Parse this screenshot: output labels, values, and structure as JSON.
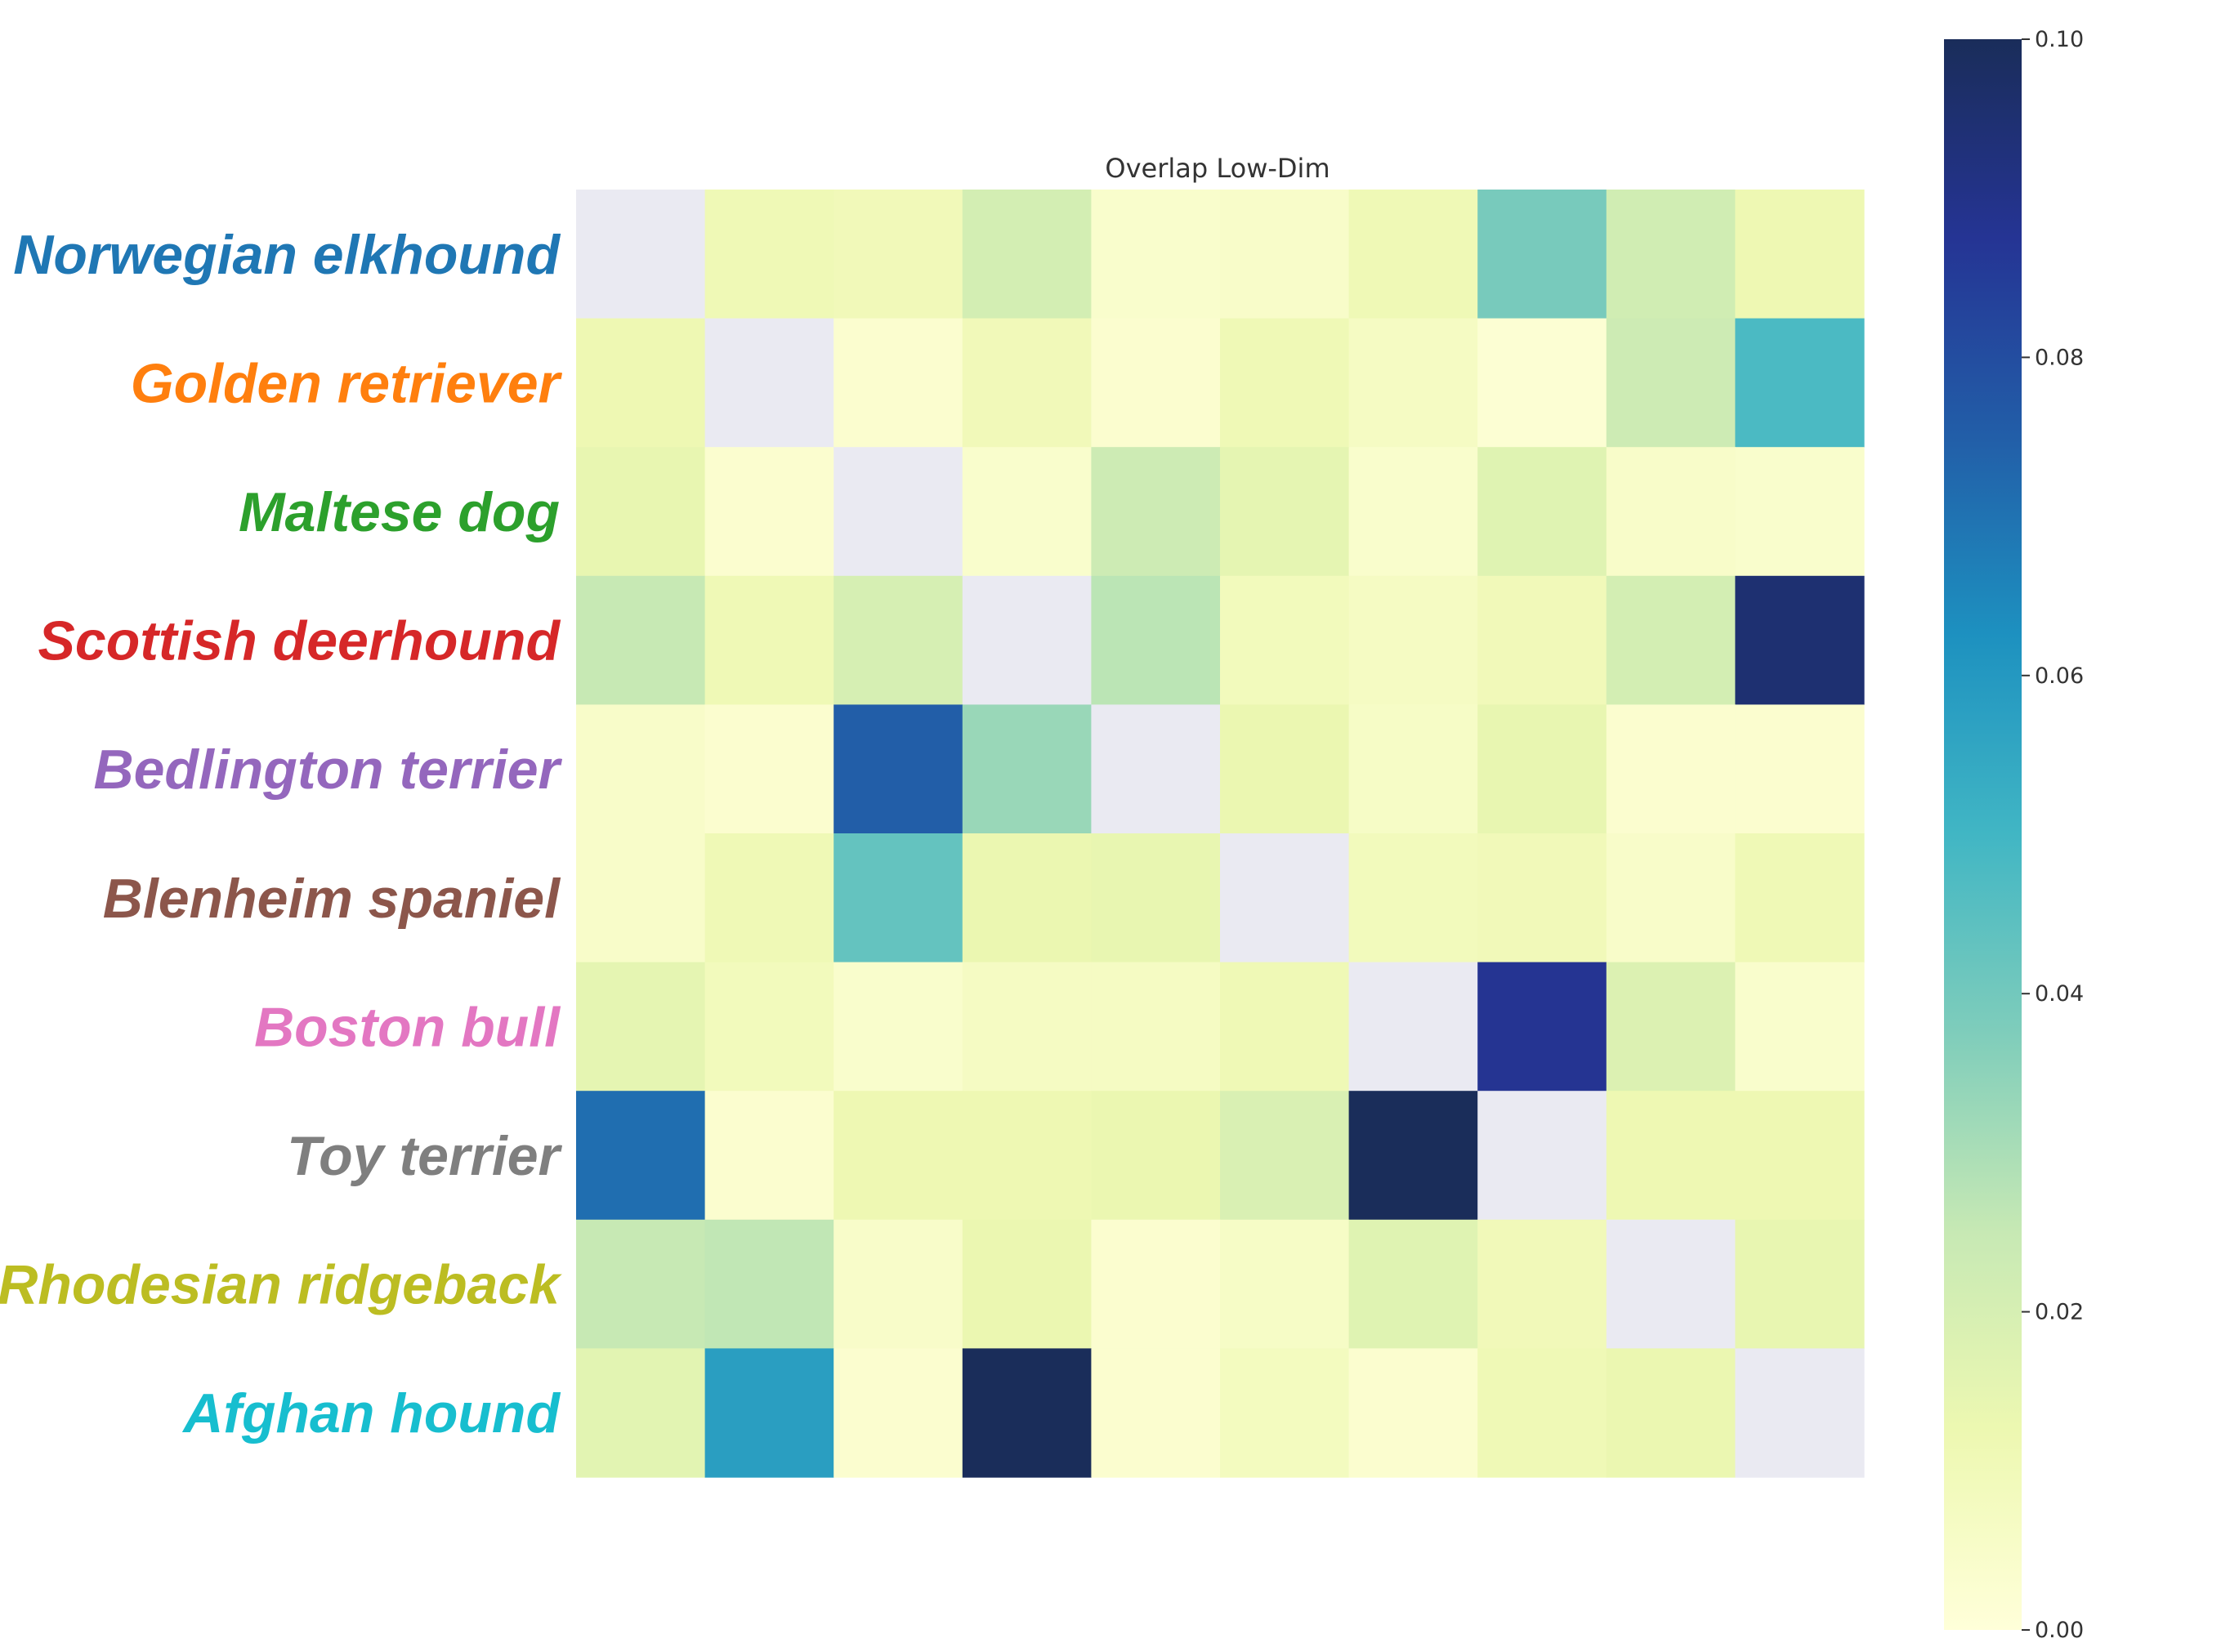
{
  "chart_data": {
    "type": "heatmap",
    "title": "Overlap Low-Dim",
    "row_labels": [
      {
        "text": "Norwegian elkhound",
        "color": "#1f77b4"
      },
      {
        "text": "Golden retriever",
        "color": "#ff7f0e"
      },
      {
        "text": "Maltese dog",
        "color": "#2ca02c"
      },
      {
        "text": "Scottish deerhound",
        "color": "#d62728"
      },
      {
        "text": "Bedlington terrier",
        "color": "#9467bd"
      },
      {
        "text": "Blenheim spaniel",
        "color": "#8c564b"
      },
      {
        "text": "Boston bull",
        "color": "#e377c2"
      },
      {
        "text": "Toy terrier",
        "color": "#7f7f7f"
      },
      {
        "text": "Rhodesian ridgeback",
        "color": "#bcbd22"
      },
      {
        "text": "Afghan hound",
        "color": "#17becf"
      }
    ],
    "values": [
      [
        null,
        0.011,
        0.01,
        0.021,
        0.004,
        0.005,
        0.011,
        0.039,
        0.022,
        0.012
      ],
      [
        0.012,
        null,
        0.003,
        0.01,
        0.003,
        0.011,
        0.007,
        0.002,
        0.023,
        0.048
      ],
      [
        0.014,
        0.003,
        null,
        0.004,
        0.023,
        0.015,
        0.004,
        0.017,
        0.005,
        0.004
      ],
      [
        0.025,
        0.011,
        0.02,
        null,
        0.027,
        0.009,
        0.007,
        0.01,
        0.021,
        0.095
      ],
      [
        0.005,
        0.003,
        0.075,
        0.033,
        null,
        0.013,
        0.006,
        0.014,
        0.003,
        0.003
      ],
      [
        0.005,
        0.011,
        0.043,
        0.013,
        0.014,
        null,
        0.009,
        0.01,
        0.005,
        0.011
      ],
      [
        0.015,
        0.009,
        0.004,
        0.007,
        0.007,
        0.011,
        null,
        0.088,
        0.018,
        0.004
      ],
      [
        0.071,
        0.003,
        0.012,
        0.012,
        0.013,
        0.019,
        0.1,
        null,
        0.012,
        0.012
      ],
      [
        0.025,
        0.026,
        0.005,
        0.013,
        0.003,
        0.006,
        0.017,
        0.01,
        null,
        0.014
      ],
      [
        0.016,
        0.058,
        0.003,
        0.1,
        0.003,
        0.008,
        0.003,
        0.011,
        0.013,
        null
      ]
    ],
    "diagonal_color": "#eaeaf2",
    "colormap": "YlGnBu",
    "colorbar": {
      "range": [
        0.0,
        0.1
      ],
      "ticks": [
        "0.00",
        "0.02",
        "0.04",
        "0.06",
        "0.08",
        "0.10"
      ]
    },
    "grid": false
  }
}
